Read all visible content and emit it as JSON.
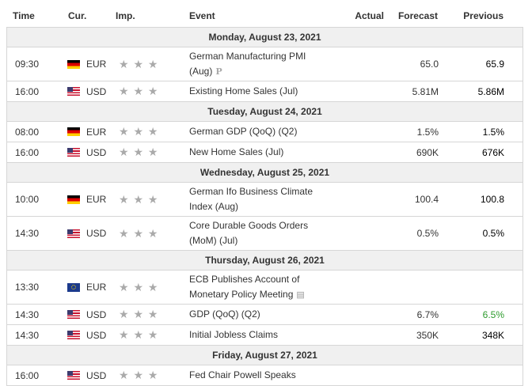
{
  "header": {
    "time": "Time",
    "cur": "Cur.",
    "imp": "Imp.",
    "event": "Event",
    "actual": "Actual",
    "forecast": "Forecast",
    "previous": "Previous"
  },
  "importance_stars": "★ ★ ★",
  "icons": {
    "preliminary": "P",
    "document": "document-icon",
    "speaker": "speaker-icon"
  },
  "days": [
    {
      "label": "Monday, August 23, 2021",
      "events": [
        {
          "time": "09:30",
          "cur": "EUR",
          "flag": "de",
          "event_l1": "German Manufacturing PMI",
          "event_l2": "(Aug)",
          "icon": "P",
          "actual": "",
          "forecast": "65.0",
          "previous": "65.9"
        },
        {
          "time": "16:00",
          "cur": "USD",
          "flag": "us",
          "event_l1": "Existing Home Sales (Jul)",
          "event_l2": "",
          "icon": "",
          "actual": "",
          "forecast": "5.81M",
          "previous": "5.86M"
        }
      ]
    },
    {
      "label": "Tuesday, August 24, 2021",
      "events": [
        {
          "time": "08:00",
          "cur": "EUR",
          "flag": "de",
          "event_l1": "German GDP (QoQ) (Q2)",
          "event_l2": "",
          "icon": "",
          "actual": "",
          "forecast": "1.5%",
          "previous": "1.5%"
        },
        {
          "time": "16:00",
          "cur": "USD",
          "flag": "us",
          "event_l1": "New Home Sales (Jul)",
          "event_l2": "",
          "icon": "",
          "actual": "",
          "forecast": "690K",
          "previous": "676K"
        }
      ]
    },
    {
      "label": "Wednesday, August 25, 2021",
      "events": [
        {
          "time": "10:00",
          "cur": "EUR",
          "flag": "de",
          "event_l1": "German Ifo Business Climate",
          "event_l2": "Index (Aug)",
          "icon": "",
          "actual": "",
          "forecast": "100.4",
          "previous": "100.8"
        },
        {
          "time": "14:30",
          "cur": "USD",
          "flag": "us",
          "event_l1": "Core Durable Goods Orders",
          "event_l2": "(MoM) (Jul)",
          "icon": "",
          "actual": "",
          "forecast": "0.5%",
          "previous": "0.5%"
        }
      ]
    },
    {
      "label": "Thursday, August 26, 2021",
      "events": [
        {
          "time": "13:30",
          "cur": "EUR",
          "flag": "eu",
          "event_l1": "ECB Publishes Account of",
          "event_l2": "Monetary Policy Meeting",
          "icon": "doc",
          "actual": "",
          "forecast": "",
          "previous": ""
        },
        {
          "time": "14:30",
          "cur": "USD",
          "flag": "us",
          "event_l1": "GDP (QoQ) (Q2)",
          "event_l2": "",
          "icon": "P",
          "actual": "",
          "forecast": "6.7%",
          "previous": "6.5%",
          "previous_color": "#2d9b2d"
        },
        {
          "time": "14:30",
          "cur": "USD",
          "flag": "us",
          "event_l1": "Initial Jobless Claims",
          "event_l2": "",
          "icon": "",
          "actual": "",
          "forecast": "350K",
          "previous": "348K"
        }
      ]
    },
    {
      "label": "Friday, August 27, 2021",
      "events": [
        {
          "time": "16:00",
          "cur": "USD",
          "flag": "us",
          "event_l1": "Fed Chair Powell Speaks",
          "event_l2": "",
          "icon": "speaker",
          "actual": "",
          "forecast": "",
          "previous": ""
        }
      ]
    }
  ]
}
